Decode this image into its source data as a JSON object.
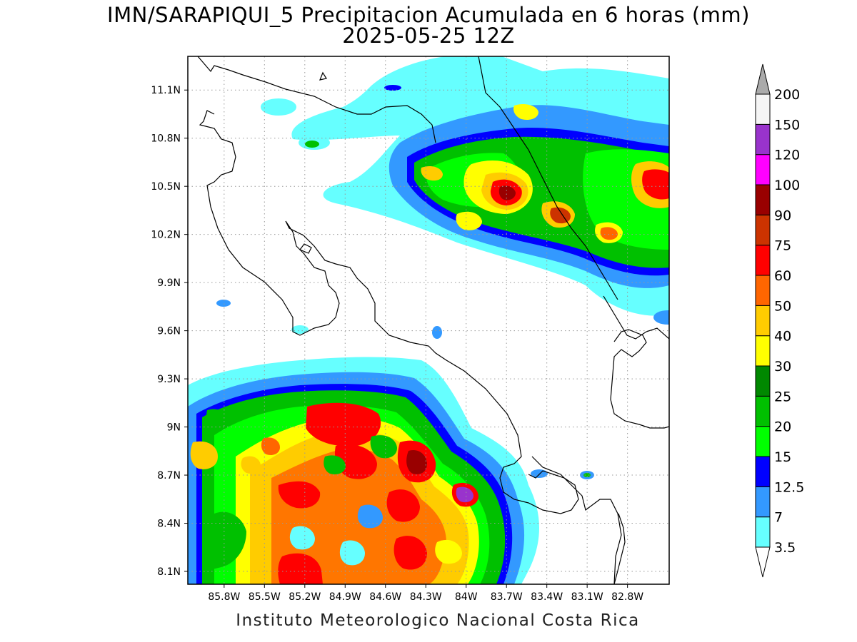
{
  "title": {
    "line1": "IMN/SARAPIQUI_5 Precipitacion Acumulada en 6 horas (mm)",
    "line2": "2025-05-25 12Z"
  },
  "credit": "Instituto Meteorologico Nacional Costa Rica",
  "map": {
    "lon_range": [
      -86.07,
      -82.49
    ],
    "lat_range": [
      8.02,
      11.31
    ],
    "lon_ticks": [
      {
        "value": -85.8,
        "label": "85.8W"
      },
      {
        "value": -85.5,
        "label": "85.5W"
      },
      {
        "value": -85.2,
        "label": "85.2W"
      },
      {
        "value": -84.9,
        "label": "84.9W"
      },
      {
        "value": -84.6,
        "label": "84.6W"
      },
      {
        "value": -84.3,
        "label": "84.3W"
      },
      {
        "value": -84.0,
        "label": "84W"
      },
      {
        "value": -83.7,
        "label": "83.7W"
      },
      {
        "value": -83.4,
        "label": "83.4W"
      },
      {
        "value": -83.1,
        "label": "83.1W"
      },
      {
        "value": -82.8,
        "label": "82.8W"
      }
    ],
    "lat_ticks": [
      {
        "value": 11.1,
        "label": "11.1N"
      },
      {
        "value": 10.8,
        "label": "10.8N"
      },
      {
        "value": 10.5,
        "label": "10.5N"
      },
      {
        "value": 10.2,
        "label": "10.2N"
      },
      {
        "value": 9.9,
        "label": "9.9N"
      },
      {
        "value": 9.6,
        "label": "9.6N"
      },
      {
        "value": 9.3,
        "label": "9.3N"
      },
      {
        "value": 9.0,
        "label": "9N"
      },
      {
        "value": 8.7,
        "label": "8.7N"
      },
      {
        "value": 8.4,
        "label": "8.4N"
      },
      {
        "value": 8.1,
        "label": "8.1N"
      }
    ],
    "grid": true
  },
  "colorbar": {
    "levels": [
      {
        "label": "3.5",
        "color": "#66ffff"
      },
      {
        "label": "7",
        "color": "#3399ff"
      },
      {
        "label": "12.5",
        "color": "#0000ff"
      },
      {
        "label": "15",
        "color": "#00ff00"
      },
      {
        "label": "20",
        "color": "#00c000"
      },
      {
        "label": "25",
        "color": "#008800"
      },
      {
        "label": "30",
        "color": "#ffff00"
      },
      {
        "label": "40",
        "color": "#ffcc00"
      },
      {
        "label": "50",
        "color": "#ff6600"
      },
      {
        "label": "60",
        "color": "#ff0000"
      },
      {
        "label": "75",
        "color": "#cc3300"
      },
      {
        "label": "90",
        "color": "#990000"
      },
      {
        "label": "100",
        "color": "#ff00ff"
      },
      {
        "label": "120",
        "color": "#9933cc"
      },
      {
        "label": "150",
        "color": "#f5f5f5"
      },
      {
        "label": "200",
        "color": "#aaaaaa"
      }
    ],
    "under_color": "#ffffff",
    "over_color": "#aaaaaa"
  }
}
